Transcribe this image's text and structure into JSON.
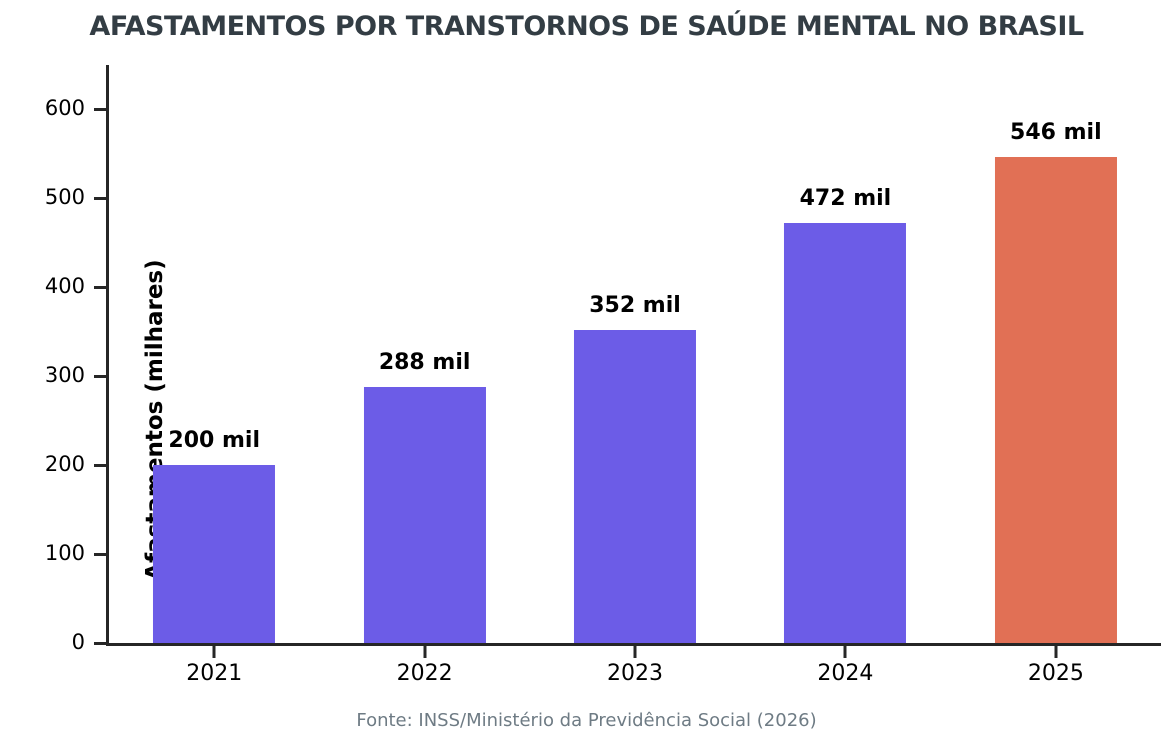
{
  "colors": {
    "title": "#333d44",
    "bar_default": "#6C5CE7",
    "bar_highlight": "#E17055",
    "axis": "#262626",
    "footer_text": "#6e7b84"
  },
  "chart_data": {
    "type": "bar",
    "title": "AFASTAMENTOS POR TRANSTORNOS DE SAÚDE MENTAL NO BRASIL",
    "categories": [
      "2021",
      "2022",
      "2023",
      "2024",
      "2025"
    ],
    "values": [
      200,
      288,
      352,
      472,
      546
    ],
    "bar_labels": [
      "200 mil",
      "288 mil",
      "352 mil",
      "472 mil",
      "546 mil"
    ],
    "bar_colors": [
      "#6C5CE7",
      "#6C5CE7",
      "#6C5CE7",
      "#6C5CE7",
      "#E17055"
    ],
    "xlabel": "",
    "ylabel": "Afastamentos (milhares)",
    "yticks": [
      0,
      100,
      200,
      300,
      400,
      500,
      600
    ],
    "ylim": [
      0,
      650
    ],
    "grid": false,
    "legend": null,
    "source": "Fonte: INSS/Ministério da Previdência Social (2026)"
  }
}
